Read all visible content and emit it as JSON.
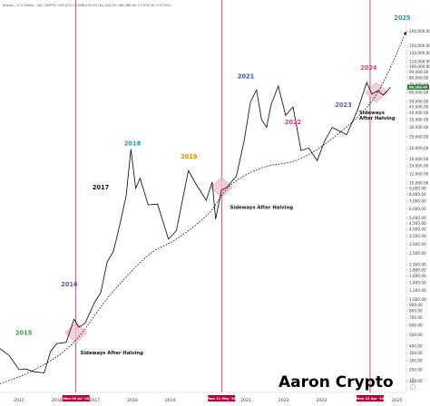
{
  "chart_data": {
    "type": "line",
    "header": "Bitcoin / U.S. Dollar, 1W, CRYPTO  O62,870.22  H68,490.00  L62,414.50  C66,386.40  +3,516.20 (+5.59%)",
    "brand": "Aaron Crypto",
    "colors": {
      "halving_line": "#b0003a",
      "trend": "#000000",
      "candles": "#000000",
      "zone_fill": "#f6c2ce",
      "zone_stroke": "#d07a90"
    },
    "y_scale": "log",
    "ylim": [
      160,
      300000
    ],
    "y_ticks": [
      "200,000.00",
      "150,000.00",
      "130,000.00",
      "110,000.00",
      "100,000.00",
      "90,000.00",
      "80,000.00",
      "70,000.00",
      "60,000.00",
      "50,000.00",
      "45,000.00",
      "40,000.00",
      "35,000.00",
      "30,000.00",
      "25,000.00",
      "20,000.00",
      "16,000.00",
      "14,000.00",
      "12,000.00",
      "10,000.00",
      "9,000.00",
      "8,000.00",
      "7,000.00",
      "6,000.00",
      "5,000.00",
      "4,500.00",
      "4,000.00",
      "3,500.00",
      "3,000.00",
      "2,500.00",
      "2,000.00",
      "1,800.00",
      "1,600.00",
      "1,400.00",
      "1,200.00",
      "1,000.00",
      "900.00",
      "800.00",
      "700.00",
      "600.00",
      "500.00",
      "400.00",
      "350.00",
      "300.00",
      "250.00",
      "200.00"
    ],
    "price_label": "66,386.40",
    "x_range": [
      "2014-07-01",
      "2025-04-01"
    ],
    "x_ticks": [
      {
        "label": "2015",
        "date": "2015-01-01"
      },
      {
        "label": "2016",
        "date": "2016-01-01"
      },
      {
        "label": "2017",
        "date": "2017-01-01"
      },
      {
        "label": "2018",
        "date": "2018-01-01"
      },
      {
        "label": "2019",
        "date": "2019-01-01"
      },
      {
        "label": "2021",
        "date": "2021-01-01"
      },
      {
        "label": "2022",
        "date": "2022-01-01"
      },
      {
        "label": "2023",
        "date": "2023-01-01"
      },
      {
        "label": "2025",
        "date": "2025-01-01"
      }
    ],
    "halvings": [
      {
        "label": "Mon 04 Jul '16",
        "date": "2016-07-04"
      },
      {
        "label": "Mon 11 May '20",
        "date": "2020-05-11"
      },
      {
        "label": "Mon 15 Apr '24",
        "date": "2024-04-15"
      }
    ],
    "price_series": [
      {
        "date": "2014-07-01",
        "price": 380
      },
      {
        "date": "2014-10-01",
        "price": 330
      },
      {
        "date": "2015-01-01",
        "price": 250
      },
      {
        "date": "2015-03-01",
        "price": 255
      },
      {
        "date": "2015-06-01",
        "price": 240
      },
      {
        "date": "2015-09-01",
        "price": 235
      },
      {
        "date": "2015-11-01",
        "price": 360
      },
      {
        "date": "2016-01-01",
        "price": 420
      },
      {
        "date": "2016-04-01",
        "price": 430
      },
      {
        "date": "2016-06-15",
        "price": 680
      },
      {
        "date": "2016-08-01",
        "price": 580
      },
      {
        "date": "2016-10-01",
        "price": 630
      },
      {
        "date": "2017-01-01",
        "price": 950
      },
      {
        "date": "2017-03-01",
        "price": 1150
      },
      {
        "date": "2017-05-01",
        "price": 2100
      },
      {
        "date": "2017-07-01",
        "price": 2600
      },
      {
        "date": "2017-09-01",
        "price": 4400
      },
      {
        "date": "2017-11-01",
        "price": 7800
      },
      {
        "date": "2017-12-17",
        "price": 19500
      },
      {
        "date": "2018-02-01",
        "price": 9000
      },
      {
        "date": "2018-03-15",
        "price": 11000
      },
      {
        "date": "2018-06-01",
        "price": 6500
      },
      {
        "date": "2018-09-01",
        "price": 6600
      },
      {
        "date": "2018-12-15",
        "price": 3300
      },
      {
        "date": "2019-03-01",
        "price": 3900
      },
      {
        "date": "2019-06-26",
        "price": 12800
      },
      {
        "date": "2019-09-01",
        "price": 10000
      },
      {
        "date": "2019-12-15",
        "price": 7100
      },
      {
        "date": "2020-02-10",
        "price": 10200
      },
      {
        "date": "2020-03-15",
        "price": 4900
      },
      {
        "date": "2020-05-11",
        "price": 8700
      },
      {
        "date": "2020-07-01",
        "price": 9200
      },
      {
        "date": "2020-10-01",
        "price": 11500
      },
      {
        "date": "2020-12-15",
        "price": 23000
      },
      {
        "date": "2021-02-15",
        "price": 50000
      },
      {
        "date": "2021-04-14",
        "price": 63000
      },
      {
        "date": "2021-06-01",
        "price": 35000
      },
      {
        "date": "2021-07-20",
        "price": 30000
      },
      {
        "date": "2021-09-01",
        "price": 47000
      },
      {
        "date": "2021-11-10",
        "price": 68000
      },
      {
        "date": "2022-01-20",
        "price": 38000
      },
      {
        "date": "2022-04-01",
        "price": 45000
      },
      {
        "date": "2022-06-18",
        "price": 19000
      },
      {
        "date": "2022-09-01",
        "price": 20000
      },
      {
        "date": "2022-11-21",
        "price": 15600
      },
      {
        "date": "2023-02-01",
        "price": 23000
      },
      {
        "date": "2023-04-15",
        "price": 30000
      },
      {
        "date": "2023-09-01",
        "price": 26000
      },
      {
        "date": "2023-12-15",
        "price": 42000
      },
      {
        "date": "2024-03-14",
        "price": 73000
      },
      {
        "date": "2024-05-01",
        "price": 58000
      },
      {
        "date": "2024-07-01",
        "price": 62000
      },
      {
        "date": "2024-08-20",
        "price": 57000
      },
      {
        "date": "2024-10-01",
        "price": 62000
      },
      {
        "date": "2024-10-28",
        "price": 66386
      }
    ],
    "trend_curve": [
      {
        "date": "2014-07-01",
        "price": 190
      },
      {
        "date": "2015-06-01",
        "price": 250
      },
      {
        "date": "2016-06-01",
        "price": 420
      },
      {
        "date": "2017-06-01",
        "price": 1100
      },
      {
        "date": "2018-06-01",
        "price": 2400
      },
      {
        "date": "2019-03-01",
        "price": 3300
      },
      {
        "date": "2020-01-01",
        "price": 5400
      },
      {
        "date": "2020-08-01",
        "price": 9500
      },
      {
        "date": "2021-06-01",
        "price": 13500
      },
      {
        "date": "2022-06-01",
        "price": 16000
      },
      {
        "date": "2023-06-01",
        "price": 26000
      },
      {
        "date": "2024-06-01",
        "price": 55000
      },
      {
        "date": "2025-04-01",
        "price": 200000
      }
    ],
    "year_labels": [
      {
        "text": "2015",
        "date": "2015-02-15",
        "price": 500,
        "color": "#2e9c3a"
      },
      {
        "text": "2016",
        "date": "2016-05-01",
        "price": 1300,
        "color": "#6a4fc4"
      },
      {
        "text": "2017",
        "date": "2017-03-01",
        "price": 8800,
        "color": "#111111"
      },
      {
        "text": "2018",
        "date": "2018-01-01",
        "price": 21000,
        "color": "#1a9aa0"
      },
      {
        "text": "2019",
        "date": "2019-07-01",
        "price": 16200,
        "color": "#e08a10"
      },
      {
        "text": "2021",
        "date": "2021-01-01",
        "price": 79000,
        "color": "#1f5bb8"
      },
      {
        "text": "2022",
        "date": "2022-04-01",
        "price": 32000,
        "color": "#e0407a"
      },
      {
        "text": "2023",
        "date": "2023-08-01",
        "price": 45000,
        "color": "#6a4fc4"
      },
      {
        "text": "2024",
        "date": "2024-04-01",
        "price": 94000,
        "color": "#e0407a"
      },
      {
        "text": "2025",
        "date": "2025-02-20",
        "price": 250000,
        "color": "#1a9aa0"
      }
    ],
    "annotations": [
      {
        "lines": [
          "Sideways After Halving"
        ],
        "date": "2016-08-15",
        "price": 340
      },
      {
        "lines": [
          "Sideways After Halving"
        ],
        "date": "2020-08-01",
        "price": 6000
      },
      {
        "lines": [
          "Sideways",
          "After Halving"
        ],
        "date": "2024-01-01",
        "price": 39000
      }
    ],
    "halving_zones": [
      {
        "date": "2016-07-04",
        "price": 520
      },
      {
        "date": "2020-05-11",
        "price": 9200
      },
      {
        "date": "2024-06-15",
        "price": 60000
      }
    ]
  }
}
